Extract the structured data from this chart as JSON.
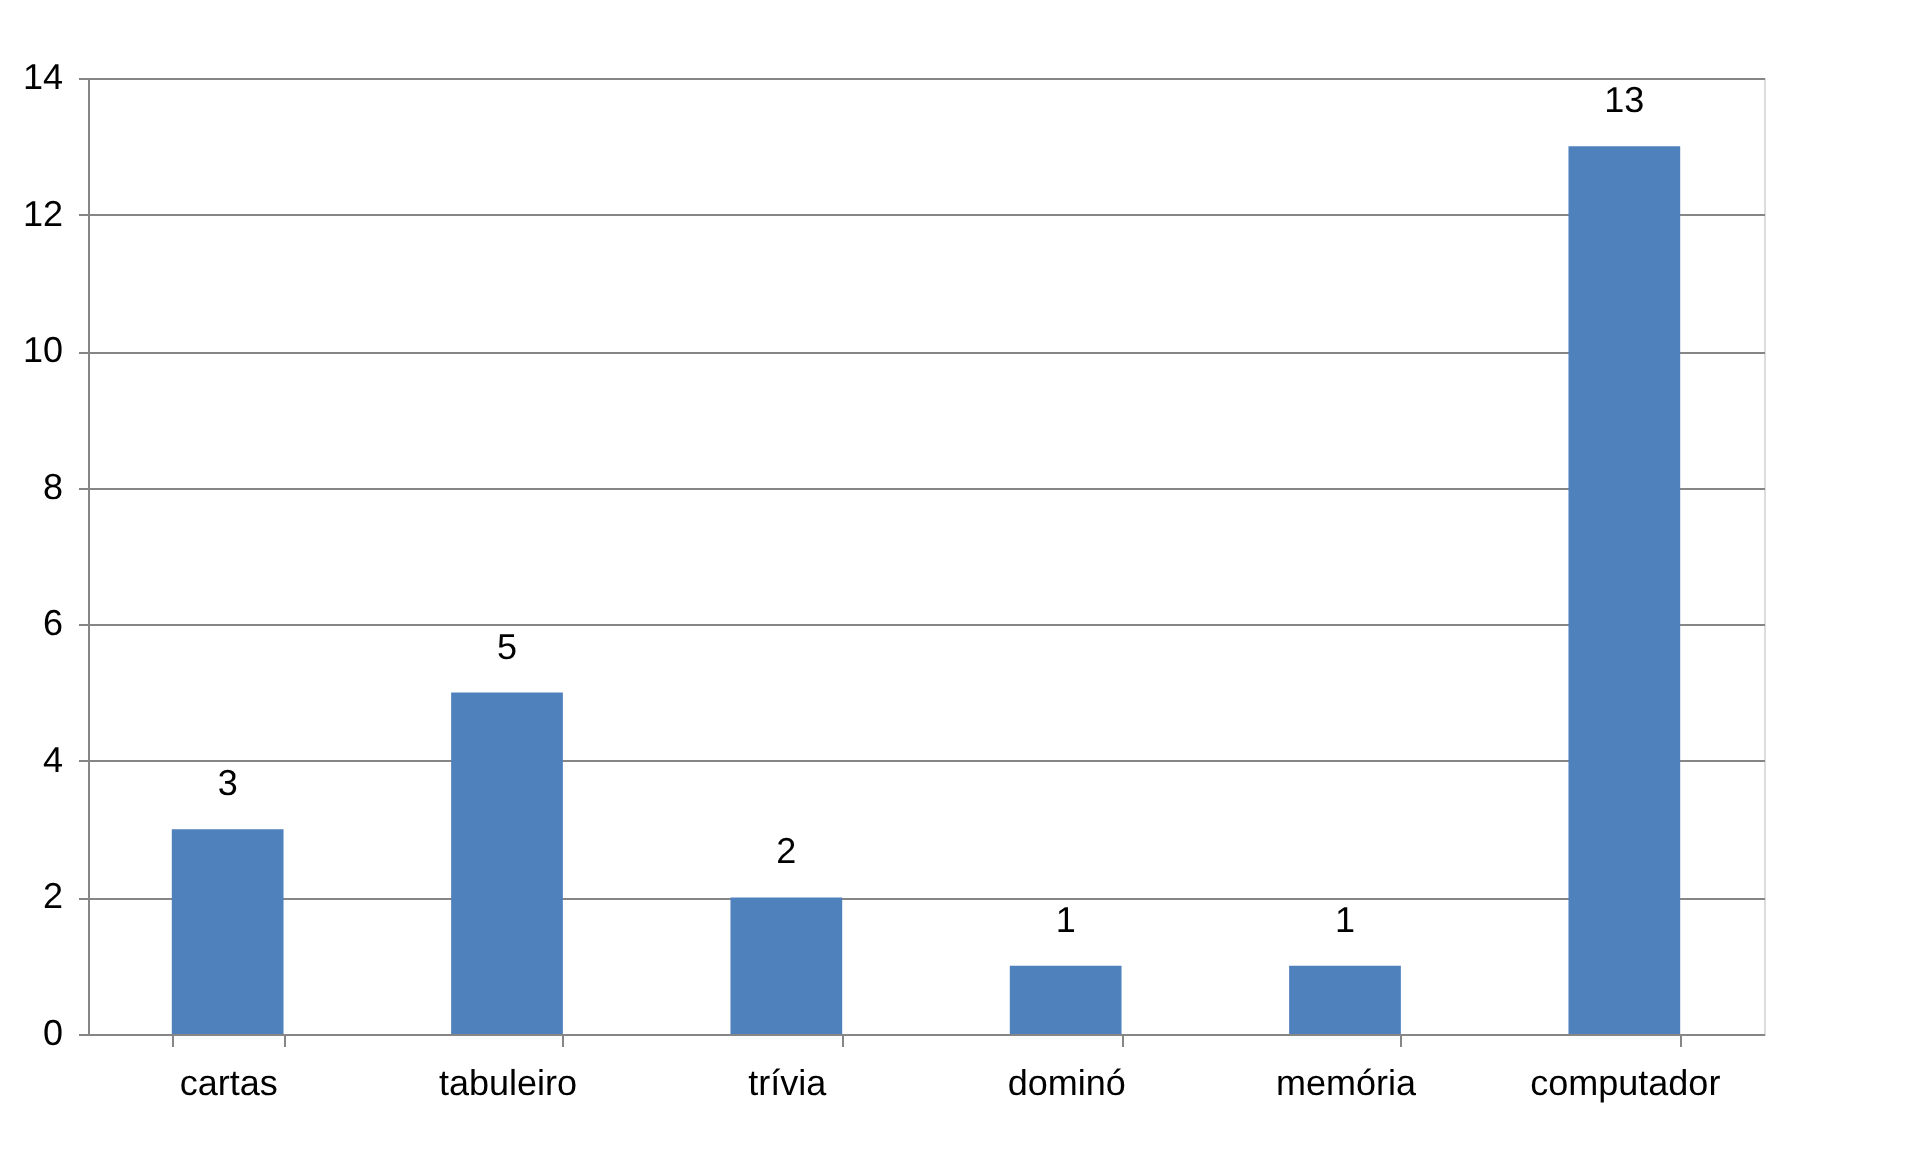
{
  "chart_data": {
    "type": "bar",
    "categories": [
      "cartas",
      "tabuleiro",
      "trívia",
      "dominó",
      "memória",
      "computador"
    ],
    "values": [
      3,
      5,
      2,
      1,
      1,
      13
    ],
    "color": "#4f81bd",
    "ylim": [
      0,
      14
    ],
    "yticks": [
      0,
      2,
      4,
      6,
      8,
      10,
      12,
      14
    ],
    "grid": "y",
    "data_labels": true
  }
}
